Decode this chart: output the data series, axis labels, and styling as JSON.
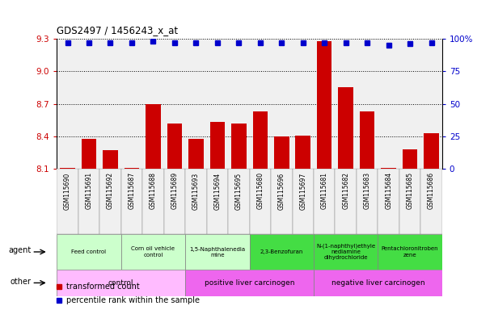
{
  "title": "GDS2497 / 1456243_x_at",
  "samples": [
    "GSM115690",
    "GSM115691",
    "GSM115692",
    "GSM115687",
    "GSM115688",
    "GSM115689",
    "GSM115693",
    "GSM115694",
    "GSM115695",
    "GSM115680",
    "GSM115696",
    "GSM115697",
    "GSM115681",
    "GSM115682",
    "GSM115683",
    "GSM115684",
    "GSM115685",
    "GSM115686"
  ],
  "bar_values": [
    8.11,
    8.38,
    8.27,
    8.11,
    8.7,
    8.52,
    8.38,
    8.53,
    8.52,
    8.63,
    8.4,
    8.41,
    9.28,
    8.85,
    8.63,
    8.11,
    8.28,
    8.43
  ],
  "percentile_values": [
    97,
    97,
    97,
    97,
    98,
    97,
    97,
    97,
    97,
    97,
    97,
    97,
    97,
    97,
    97,
    95,
    96,
    97
  ],
  "ylim_left": [
    8.1,
    9.3
  ],
  "ylim_right": [
    0,
    100
  ],
  "yticks_left": [
    8.1,
    8.4,
    8.7,
    9.0,
    9.3
  ],
  "yticks_right": [
    0,
    25,
    50,
    75,
    100
  ],
  "bar_color": "#cc0000",
  "dot_color": "#0000cc",
  "agent_groups": [
    {
      "label": "Feed control",
      "start": 0,
      "end": 3,
      "color": "#ccffcc"
    },
    {
      "label": "Corn oil vehicle\ncontrol",
      "start": 3,
      "end": 6,
      "color": "#ccffcc"
    },
    {
      "label": "1,5-Naphthalenedia\nmine",
      "start": 6,
      "end": 9,
      "color": "#ccffcc"
    },
    {
      "label": "2,3-Benzofuran",
      "start": 9,
      "end": 12,
      "color": "#44dd44"
    },
    {
      "label": "N-(1-naphthyl)ethyle\nnediamine\ndihydrochloride",
      "start": 12,
      "end": 15,
      "color": "#44dd44"
    },
    {
      "label": "Pentachloronitroben\nzene",
      "start": 15,
      "end": 18,
      "color": "#44dd44"
    }
  ],
  "other_groups": [
    {
      "label": "control",
      "start": 0,
      "end": 6,
      "color": "#ffbbff"
    },
    {
      "label": "positive liver carcinogen",
      "start": 6,
      "end": 12,
      "color": "#ee66ee"
    },
    {
      "label": "negative liver carcinogen",
      "start": 12,
      "end": 18,
      "color": "#ee66ee"
    }
  ],
  "legend_bar_label": "transformed count",
  "legend_dot_label": "percentile rank within the sample",
  "left_axis_color": "#cc0000",
  "right_axis_color": "#0000cc",
  "grid_color": "#000000",
  "fig_width": 6.11,
  "fig_height": 3.84,
  "chart_bg": "#f0f0f0"
}
